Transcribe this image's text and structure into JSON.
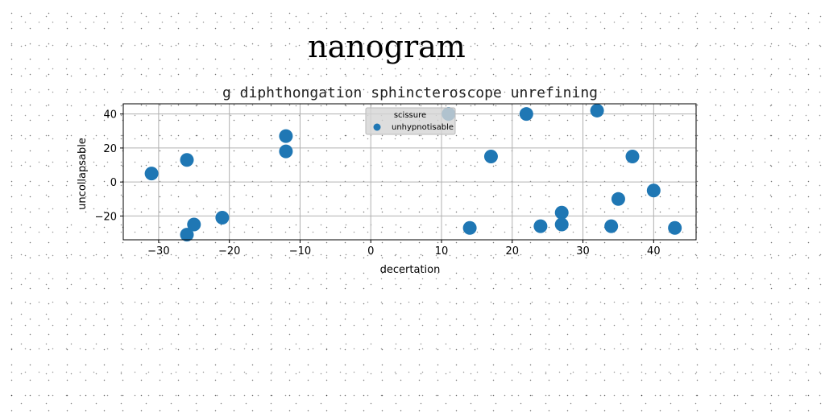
{
  "suptitle": "nanogram",
  "chart_data": {
    "type": "scatter",
    "title": "g diphthongation sphincteroscope unrefining",
    "xlabel": "decertation",
    "ylabel": "uncollapsable",
    "xlim": [
      -35,
      46
    ],
    "ylim": [
      -34,
      46
    ],
    "xticks": [
      -30,
      -20,
      -10,
      0,
      10,
      20,
      30,
      40
    ],
    "yticks": [
      -20,
      0,
      20,
      40
    ],
    "xtick_labels": [
      "−30",
      "−20",
      "−10",
      "0",
      "10",
      "20",
      "30",
      "40"
    ],
    "ytick_labels": [
      "−20",
      "0",
      "20",
      "40"
    ],
    "grid": true,
    "legend": {
      "title": "scissure",
      "placement": "top-center",
      "entries": [
        "unhypnotisable"
      ]
    },
    "color": "#1f77b4",
    "series": [
      {
        "name": "unhypnotisable",
        "x": [
          -31,
          -26,
          -26,
          -25,
          -21,
          -12,
          -12,
          11,
          14,
          17,
          22,
          24,
          27,
          27,
          32,
          34,
          35,
          37,
          40,
          43
        ],
        "y": [
          5,
          13,
          -31,
          -25,
          -21,
          27,
          18,
          40,
          -27,
          15,
          40,
          -26,
          -18,
          -25,
          42,
          -26,
          -10,
          15,
          -5,
          -27
        ]
      }
    ]
  }
}
